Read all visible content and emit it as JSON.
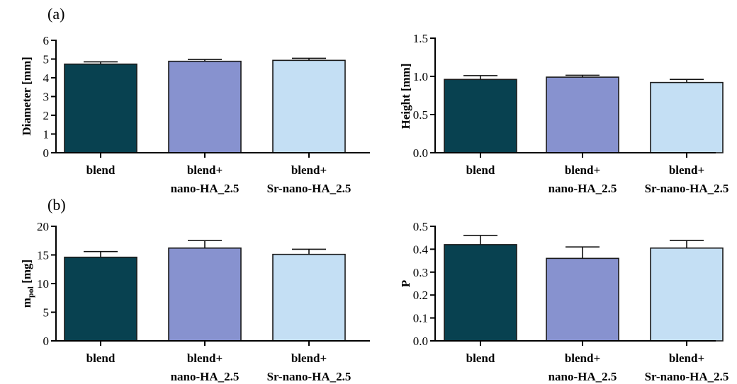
{
  "panel_labels": [
    "(a)",
    "(b)"
  ],
  "colors": [
    "#084150",
    "#8792cf",
    "#c4dff4"
  ],
  "chart_data": [
    {
      "type": "bar",
      "categories": [
        [
          "blend"
        ],
        [
          "blend+",
          "nano-HA_2.5"
        ],
        [
          "blend+",
          "Sr-nano-HA_2.5"
        ]
      ],
      "values": [
        4.73,
        4.88,
        4.93
      ],
      "errors": [
        0.12,
        0.1,
        0.11
      ],
      "ylabel": "Diameter [mm]",
      "ylim": [
        0,
        6
      ],
      "yticks": [
        "0",
        "1",
        "2",
        "3",
        "4",
        "5",
        "6"
      ]
    },
    {
      "type": "bar",
      "categories": [
        [
          "blend"
        ],
        [
          "blend+",
          "nano-HA_2.5"
        ],
        [
          "blend+",
          "Sr-nano-HA_2.5"
        ]
      ],
      "values": [
        0.96,
        0.99,
        0.92
      ],
      "errors": [
        0.05,
        0.025,
        0.04
      ],
      "ylabel": "Height [mm]",
      "ylim": [
        0,
        1.5
      ],
      "yticks": [
        "0.0",
        "0.5",
        "1.0",
        "1.5"
      ]
    },
    {
      "type": "bar",
      "categories": [
        [
          "blend"
        ],
        [
          "blend+",
          "nano-HA_2.5"
        ],
        [
          "blend+",
          "Sr-nano-HA_2.5"
        ]
      ],
      "values": [
        14.6,
        16.2,
        15.1
      ],
      "errors": [
        1.0,
        1.3,
        0.9
      ],
      "ylabel_main": "m",
      "ylabel_sub": "pol",
      "ylabel_unit": " [mg]",
      "ylim": [
        0,
        20
      ],
      "yticks": [
        "0",
        "5",
        "10",
        "15",
        "20"
      ]
    },
    {
      "type": "bar",
      "categories": [
        [
          "blend"
        ],
        [
          "blend+",
          "nano-HA_2.5"
        ],
        [
          "blend+",
          "Sr-nano-HA_2.5"
        ]
      ],
      "values": [
        0.42,
        0.36,
        0.405
      ],
      "errors": [
        0.04,
        0.05,
        0.033
      ],
      "ylabel": "P",
      "ylim": [
        0,
        0.5
      ],
      "yticks": [
        "0.0",
        "0.1",
        "0.2",
        "0.3",
        "0.4",
        "0.5"
      ]
    }
  ]
}
